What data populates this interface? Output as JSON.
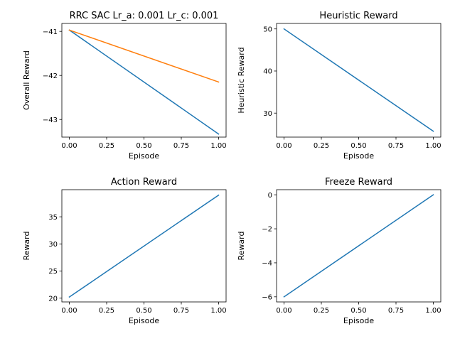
{
  "chart_data": [
    {
      "type": "line",
      "title": "RRC SAC Lr_a: 0.001 Lr_c: 0.001",
      "xlabel": "Episode",
      "ylabel": "Overall Reward",
      "xlim": [
        -0.05,
        1.05
      ],
      "ylim": [
        -43.4,
        -40.82
      ],
      "xticks": [
        0.0,
        0.25,
        0.5,
        0.75,
        1.0
      ],
      "xtick_labels": [
        "0.00",
        "0.25",
        "0.50",
        "0.75",
        "1.00"
      ],
      "yticks": [
        -41,
        -42,
        -43
      ],
      "ytick_labels": [
        "−41",
        "−42",
        "−43"
      ],
      "series": [
        {
          "color": "#1f77b4",
          "x": [
            0,
            1
          ],
          "y": [
            -40.97,
            -43.33
          ]
        },
        {
          "color": "#ff7f0e",
          "x": [
            0,
            1
          ],
          "y": [
            -40.97,
            -42.15
          ]
        }
      ]
    },
    {
      "type": "line",
      "title": "Heuristic Reward",
      "xlabel": "Episode",
      "ylabel": "Heuristic Reward",
      "xlim": [
        -0.05,
        1.05
      ],
      "ylim": [
        24.3,
        51.3
      ],
      "xticks": [
        0.0,
        0.25,
        0.5,
        0.75,
        1.0
      ],
      "xtick_labels": [
        "0.00",
        "0.25",
        "0.50",
        "0.75",
        "1.00"
      ],
      "yticks": [
        50,
        40,
        30
      ],
      "ytick_labels": [
        "50",
        "40",
        "30"
      ],
      "series": [
        {
          "color": "#1f77b4",
          "x": [
            0,
            1
          ],
          "y": [
            50.0,
            25.7
          ]
        }
      ]
    },
    {
      "type": "line",
      "title": "Action Reward",
      "xlabel": "Episode",
      "ylabel": "Reward",
      "xlim": [
        -0.05,
        1.05
      ],
      "ylim": [
        19.3,
        40.0
      ],
      "xticks": [
        0.0,
        0.25,
        0.5,
        0.75,
        1.0
      ],
      "xtick_labels": [
        "0.00",
        "0.25",
        "0.50",
        "0.75",
        "1.00"
      ],
      "yticks": [
        35,
        30,
        25,
        20
      ],
      "ytick_labels": [
        "35",
        "30",
        "25",
        "20"
      ],
      "series": [
        {
          "color": "#1f77b4",
          "x": [
            0,
            1
          ],
          "y": [
            20.2,
            39.0
          ]
        }
      ]
    },
    {
      "type": "line",
      "title": "Freeze Reward",
      "xlabel": "Episode",
      "ylabel": "Reward",
      "xlim": [
        -0.05,
        1.05
      ],
      "ylim": [
        -6.3,
        0.3
      ],
      "xticks": [
        0.0,
        0.25,
        0.5,
        0.75,
        1.0
      ],
      "xtick_labels": [
        "0.00",
        "0.25",
        "0.50",
        "0.75",
        "1.00"
      ],
      "yticks": [
        0,
        -2,
        -4,
        -6
      ],
      "ytick_labels": [
        "0",
        "−2",
        "−4",
        "−6"
      ],
      "series": [
        {
          "color": "#1f77b4",
          "x": [
            0,
            1
          ],
          "y": [
            -6.0,
            0.0
          ]
        }
      ]
    }
  ]
}
